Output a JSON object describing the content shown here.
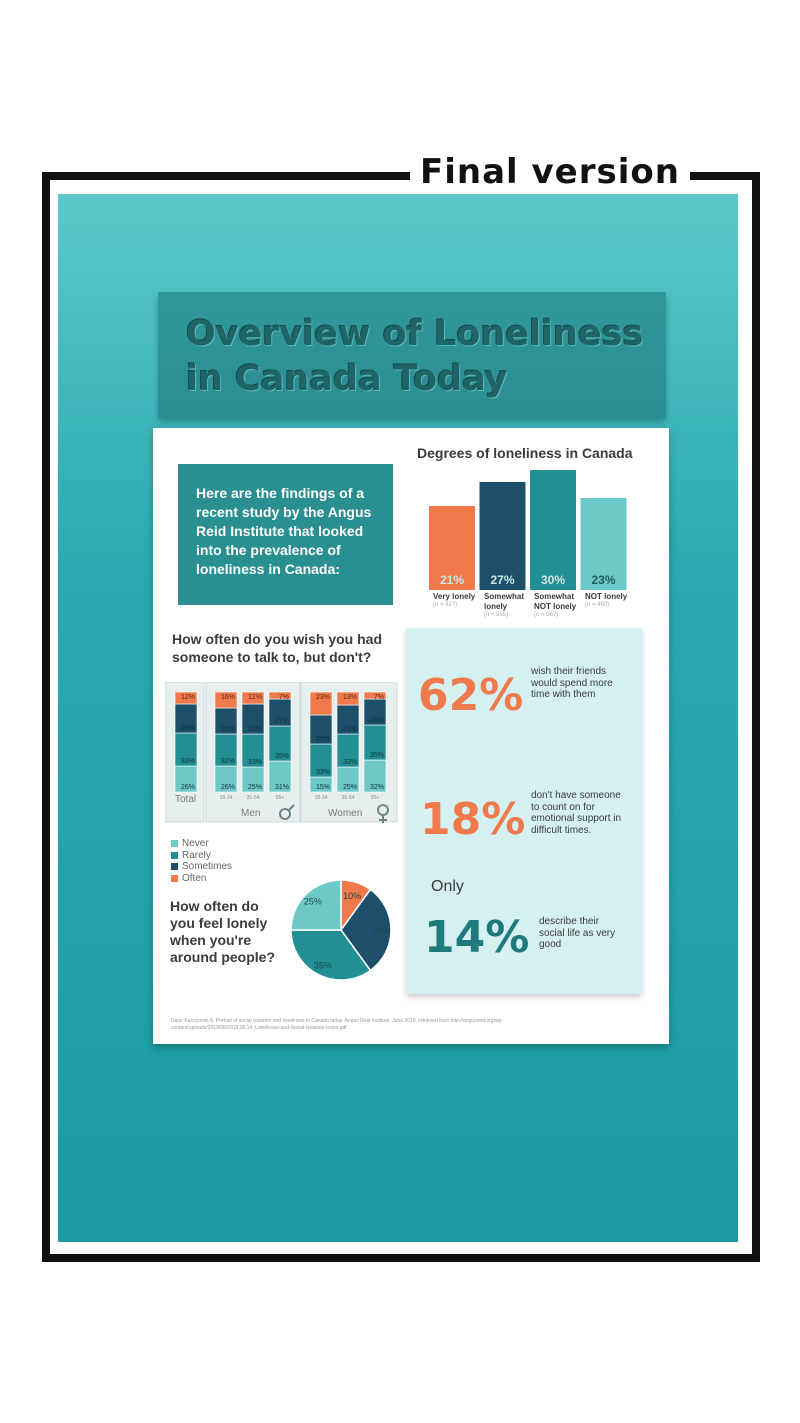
{
  "frame_label": "Final version",
  "title": "Overview of Loneliness in Canada Today",
  "intro": "Here are the findings of a recent study by the Angus Reid Institute that looked into the prevalence of loneliness in Canada:",
  "colors": {
    "orange": "#f07a4c",
    "dark_navy": "#1d4f6b",
    "teal": "#218f93",
    "light_teal": "#6cc9c8",
    "wall": "#2aaab0"
  },
  "degrees": {
    "title": "Degrees of loneliness in Canada",
    "items": [
      {
        "label": "Very lonely",
        "n": "(n = 427)",
        "value": "21%"
      },
      {
        "label": "Somewhat lonely",
        "n": "(n = 555)",
        "value": "27%"
      },
      {
        "label": "Somewhat NOT lonely",
        "n": "(n = 567)",
        "value": "30%"
      },
      {
        "label": "NOT lonely",
        "n": "(n = 460)",
        "value": "23%"
      }
    ]
  },
  "talk_question": "How often do you wish you had someone to talk to, but don't?",
  "group_labels": {
    "total": "Total",
    "men": "Men",
    "women": "Women"
  },
  "legend": [
    "Never",
    "Rarely",
    "Sometimes",
    "Often"
  ],
  "feel_question": "How often do you feel lonely when you're around people?",
  "stats": {
    "s1": {
      "value": "62%",
      "text": "wish their friends would spend more time with them"
    },
    "s2": {
      "value": "18%",
      "text": "don't have someone to count on for emotional support in difficult times."
    },
    "only": "Only",
    "s3": {
      "value": "14%",
      "text": "describe their social life as very good"
    }
  },
  "source": "Data: Kurczynski A. Portrait of social isolation and loneliness in Canada today. Angus Reid Institute. June 2019. retrieved from http://angusreid.org/wp-content/uploads/2019/06/2019.06.14_Loneliness-and-Social-Isolation-Index.pdf",
  "chart_data": [
    {
      "type": "bar",
      "title": "Degrees of loneliness in Canada",
      "categories": [
        "Very lonely",
        "Somewhat lonely",
        "Somewhat NOT lonely",
        "NOT lonely"
      ],
      "values": [
        21,
        27,
        30,
        23
      ],
      "ylim": [
        0,
        30
      ]
    },
    {
      "type": "bar",
      "stacked": true,
      "title": "How often do you wish you had someone to talk to, but don't?",
      "categories": [
        "Total",
        "18-34",
        "35-54",
        "55+",
        "18-34",
        "35-54",
        "55+"
      ],
      "groups": [
        {
          "name": "Total",
          "categories": [
            "Total"
          ]
        },
        {
          "name": "Men",
          "categories": [
            "18-34",
            "35-54",
            "55+"
          ]
        },
        {
          "name": "Women",
          "categories": [
            "18-34",
            "35-54",
            "55+"
          ]
        }
      ],
      "series": [
        {
          "name": "Never",
          "values": [
            26,
            26,
            25,
            31,
            15,
            25,
            32
          ]
        },
        {
          "name": "Rarely",
          "values": [
            33,
            32,
            33,
            35,
            33,
            33,
            35
          ]
        },
        {
          "name": "Sometimes",
          "values": [
            29,
            26,
            30,
            27,
            29,
            29,
            26
          ]
        },
        {
          "name": "Often",
          "values": [
            12,
            16,
            12,
            7,
            23,
            13,
            7
          ]
        }
      ],
      "ylim": [
        0,
        100
      ],
      "legend": "bottom-left"
    },
    {
      "type": "pie",
      "title": "How often do you feel lonely when you're around people?",
      "categories": [
        "Often",
        "Sometimes",
        "Rarely",
        "Never"
      ],
      "values": [
        10,
        30,
        35,
        25
      ]
    }
  ]
}
